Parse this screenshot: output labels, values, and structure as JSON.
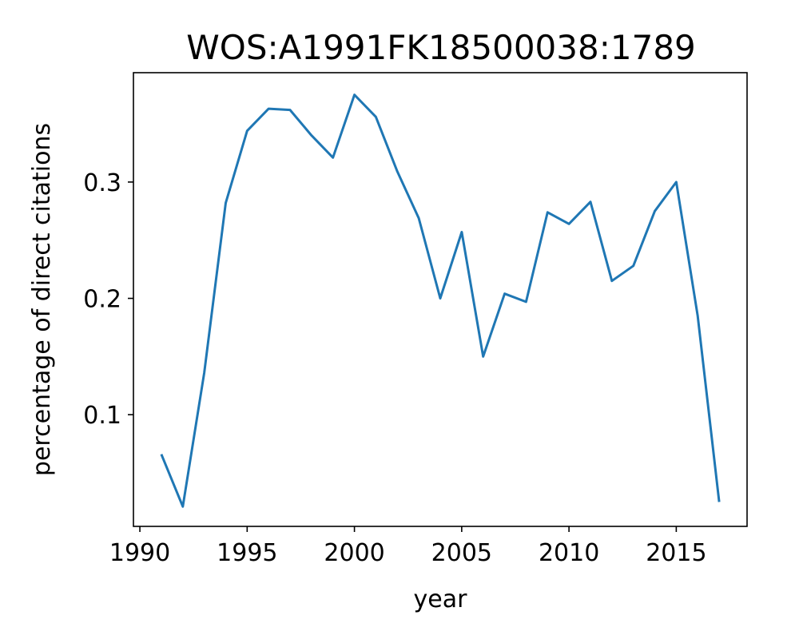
{
  "chart_data": {
    "type": "line",
    "title": "WOS:A1991FK18500038:1789",
    "xlabel": "year",
    "ylabel": "percentage of direct citations",
    "xlim": [
      1989.7,
      2018.3
    ],
    "ylim": [
      0.004,
      0.394
    ],
    "x_ticks": [
      1990,
      1995,
      2000,
      2005,
      2010,
      2015
    ],
    "x_tick_labels": [
      "1990",
      "1995",
      "2000",
      "2005",
      "2010",
      "2015"
    ],
    "y_ticks": [
      0.1,
      0.2,
      0.3
    ],
    "y_tick_labels": [
      "0.1",
      "0.2",
      "0.3"
    ],
    "grid": false,
    "legend": "none",
    "series": [
      {
        "color": "#1f77b4",
        "x": [
          1991,
          1992,
          1993,
          1994,
          1995,
          1996,
          1997,
          1998,
          1999,
          2000,
          2001,
          2002,
          2003,
          2004,
          2005,
          2006,
          2007,
          2008,
          2009,
          2010,
          2011,
          2012,
          2013,
          2014,
          2015,
          2016,
          2017
        ],
        "y": [
          0.066,
          0.021,
          0.136,
          0.282,
          0.344,
          0.363,
          0.362,
          0.34,
          0.321,
          0.375,
          0.356,
          0.309,
          0.269,
          0.2,
          0.257,
          0.15,
          0.204,
          0.197,
          0.274,
          0.264,
          0.283,
          0.215,
          0.228,
          0.275,
          0.3,
          0.185,
          0.025
        ]
      }
    ]
  }
}
